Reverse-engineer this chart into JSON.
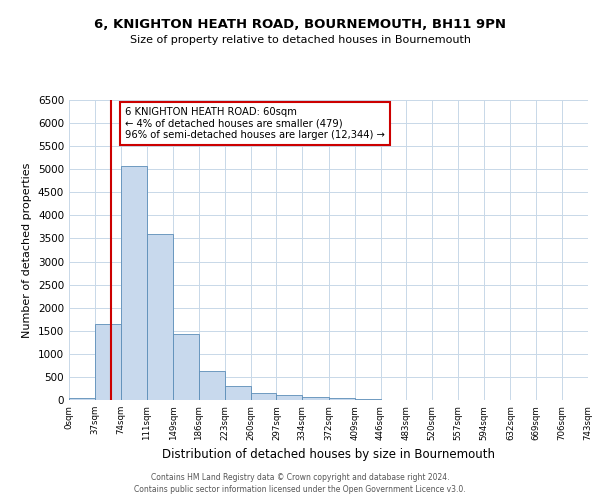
{
  "title": "6, KNIGHTON HEATH ROAD, BOURNEMOUTH, BH11 9PN",
  "subtitle": "Size of property relative to detached houses in Bournemouth",
  "xlabel": "Distribution of detached houses by size in Bournemouth",
  "ylabel": "Number of detached properties",
  "bar_edges": [
    0,
    37,
    74,
    111,
    149,
    186,
    223,
    260,
    297,
    334,
    372,
    409,
    446,
    483,
    520,
    557,
    594,
    632,
    669,
    706,
    743
  ],
  "bar_heights": [
    50,
    1650,
    5070,
    3590,
    1430,
    620,
    300,
    155,
    100,
    55,
    40,
    20,
    5,
    0,
    0,
    0,
    0,
    0,
    0,
    0
  ],
  "bar_color": "#c8d9ed",
  "bar_edgecolor": "#5b8db8",
  "property_line_x": 60,
  "property_line_color": "#cc0000",
  "annotation_text": "6 KNIGHTON HEATH ROAD: 60sqm\n← 4% of detached houses are smaller (479)\n96% of semi-detached houses are larger (12,344) →",
  "annotation_box_edgecolor": "#cc0000",
  "ylim": [
    0,
    6500
  ],
  "yticks": [
    0,
    500,
    1000,
    1500,
    2000,
    2500,
    3000,
    3500,
    4000,
    4500,
    5000,
    5500,
    6000,
    6500
  ],
  "footer_line1": "Contains HM Land Registry data © Crown copyright and database right 2024.",
  "footer_line2": "Contains public sector information licensed under the Open Government Licence v3.0.",
  "background_color": "#ffffff",
  "grid_color": "#c8d8e8"
}
